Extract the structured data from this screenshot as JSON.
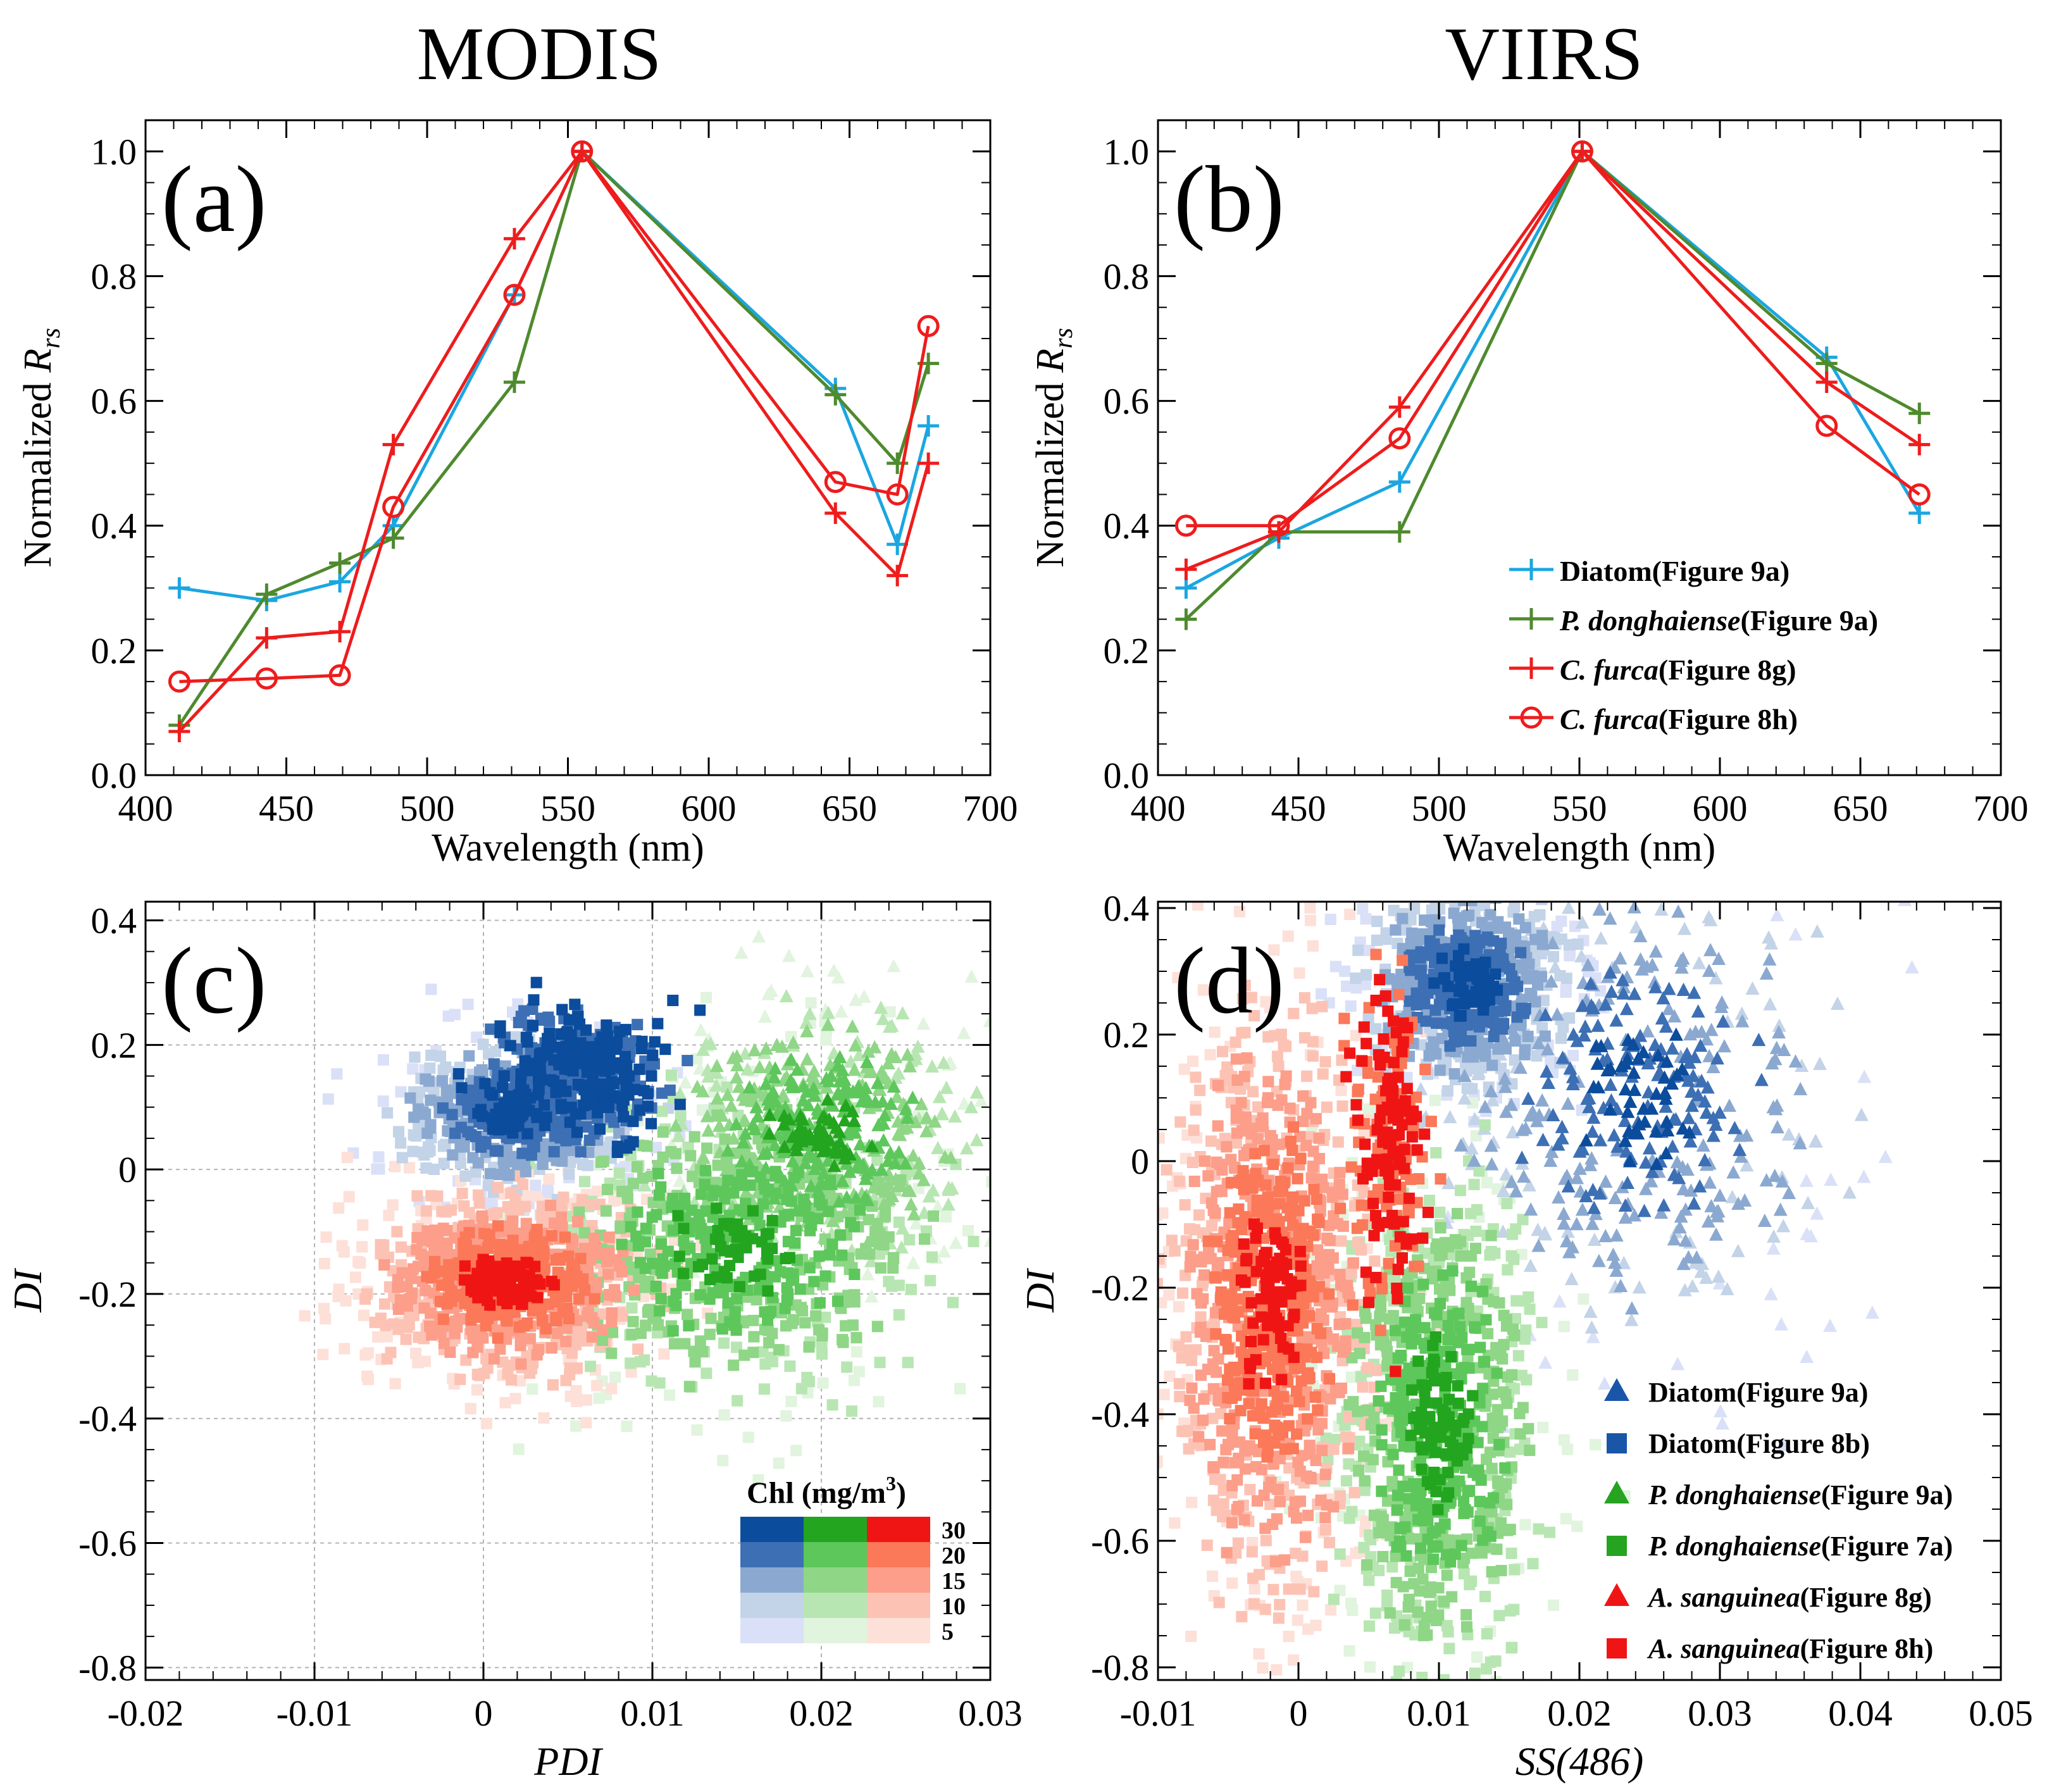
{
  "colors": {
    "diatom_spec": "#1ba6e0",
    "pdong_spec": "#4e8a2e",
    "cfurca_spec": "#ee1c1c",
    "blue": [
      "#dae0f7",
      "#c3d3e8",
      "#8ba9d0",
      "#3d6fb4",
      "#0b4c9c"
    ],
    "green": [
      "#e1f4de",
      "#b8e6b2",
      "#8fd687",
      "#5dc75b",
      "#23a520"
    ],
    "red": [
      "#fde0d8",
      "#fcc3b5",
      "#fc9e8a",
      "#fb7858",
      "#f01515"
    ]
  },
  "chart_data": [
    {
      "id": "a",
      "type": "line",
      "column_title": "MODIS",
      "panel_label": "(a)",
      "xlabel": "Wavelength (nm)",
      "ylabel_main": "Normalized R",
      "ylabel_sub": "rs",
      "xlim": [
        400,
        700
      ],
      "ylim": [
        0,
        1.05
      ],
      "xticks": [
        400,
        450,
        500,
        550,
        600,
        650,
        700
      ],
      "xtick_labels": [
        "400",
        "450",
        "500",
        "550",
        "600",
        "650",
        "700"
      ],
      "yticks": [
        0,
        0.2,
        0.4,
        0.6,
        0.8,
        1.0
      ],
      "ytick_labels": [
        "0.0",
        "0.2",
        "0.4",
        "0.6",
        "0.8",
        "1.0"
      ],
      "x": [
        412,
        443,
        469,
        488,
        531,
        555,
        645,
        667,
        678
      ],
      "series": [
        {
          "name": "Diatom(Figure 9a)",
          "color_key": "diatom_spec",
          "marker": "plus",
          "values": [
            0.3,
            0.28,
            0.31,
            0.4,
            0.77,
            1.0,
            0.62,
            0.37,
            0.56
          ]
        },
        {
          "name": "P. donghaiense(Figure 9a)",
          "color_key": "pdong_spec",
          "marker": "plus",
          "values": [
            0.08,
            0.29,
            0.34,
            0.38,
            0.63,
            1.0,
            0.61,
            0.5,
            0.66
          ]
        },
        {
          "name": "C. furca(Figure 8g)",
          "color_key": "cfurca_spec",
          "marker": "plus",
          "values": [
            0.07,
            0.22,
            0.23,
            0.53,
            0.86,
            1.0,
            0.42,
            0.32,
            0.5
          ]
        },
        {
          "name": "C. furca(Figure 8h)",
          "color_key": "cfurca_spec",
          "marker": "circle",
          "values": [
            0.15,
            0.155,
            0.16,
            0.43,
            0.77,
            1.0,
            0.47,
            0.45,
            0.72
          ]
        }
      ]
    },
    {
      "id": "b",
      "type": "line",
      "column_title": "VIIRS",
      "panel_label": "(b)",
      "xlabel": "Wavelength (nm)",
      "ylabel_main": "Normalized R",
      "ylabel_sub": "rs",
      "xlim": [
        400,
        700
      ],
      "ylim": [
        0,
        1.05
      ],
      "xticks": [
        400,
        450,
        500,
        550,
        600,
        650,
        700
      ],
      "xtick_labels": [
        "400",
        "450",
        "500",
        "550",
        "600",
        "650",
        "700"
      ],
      "yticks": [
        0,
        0.2,
        0.4,
        0.6,
        0.8,
        1.0
      ],
      "ytick_labels": [
        "0.0",
        "0.2",
        "0.4",
        "0.6",
        "0.8",
        "1.0"
      ],
      "x": [
        410,
        443,
        486,
        551,
        638,
        671
      ],
      "series": [
        {
          "name": "Diatom(Figure 9a)",
          "name_italic": "",
          "name_rest": "Diatom(Figure 9a)",
          "color_key": "diatom_spec",
          "marker": "plus",
          "values": [
            0.3,
            0.38,
            0.47,
            1.0,
            0.67,
            0.42
          ]
        },
        {
          "name": "P. donghaiense(Figure 9a)",
          "name_italic": "P. donghaiense",
          "name_rest": "(Figure 9a)",
          "color_key": "pdong_spec",
          "marker": "plus",
          "values": [
            0.25,
            0.39,
            0.39,
            1.0,
            0.66,
            0.58
          ]
        },
        {
          "name": "C. furca(Figure 8g)",
          "name_italic": "C. furca",
          "name_rest": "(Figure 8g)",
          "color_key": "cfurca_spec",
          "marker": "plus",
          "values": [
            0.33,
            0.39,
            0.59,
            1.0,
            0.63,
            0.53
          ]
        },
        {
          "name": "C. furca(Figure 8h)",
          "name_italic": "C. furca",
          "name_rest": "(Figure 8h)",
          "color_key": "cfurca_spec",
          "marker": "circle",
          "values": [
            0.4,
            0.4,
            0.54,
            1.0,
            0.56,
            0.45
          ]
        }
      ],
      "legend_position": "center-right"
    },
    {
      "id": "c",
      "type": "scatter",
      "panel_label": "(c)",
      "xlabel": "PDI",
      "ylabel": "DI",
      "xlim": [
        -0.02,
        0.03
      ],
      "ylim": [
        -0.82,
        0.43
      ],
      "grid": true,
      "xticks": [
        -0.02,
        -0.01,
        0,
        0.01,
        0.02,
        0.03
      ],
      "xtick_labels": [
        "-0.02",
        "-0.01",
        "0",
        "0.01",
        "0.02",
        "0.03"
      ],
      "yticks": [
        -0.8,
        -0.6,
        -0.4,
        -0.2,
        0,
        0.2,
        0.4
      ],
      "ytick_labels": [
        "-0.8",
        "-0.6",
        "-0.4",
        "-0.2",
        "0",
        "0.2",
        "0.4"
      ],
      "colorbar": {
        "title": "Chl (mg/m",
        "title_sup": "3",
        "title_end": ")",
        "levels": [
          "30",
          "20",
          "15",
          "10",
          "5"
        ],
        "position": "bottom-right"
      },
      "clusters": [
        {
          "group": "diatom",
          "shape": "square",
          "palette": "blue",
          "center": [
            0.002,
            0.09
          ],
          "spread": [
            0.0035,
            0.06
          ],
          "count": 520,
          "tilt": 8
        },
        {
          "group": "diatom",
          "shape": "square",
          "palette": "blue",
          "center": [
            0.0055,
            0.16
          ],
          "spread": [
            0.0025,
            0.05
          ],
          "count": 380,
          "tilt": 6,
          "levels": [
            3,
            4
          ]
        },
        {
          "group": "dino",
          "shape": "square",
          "palette": "green",
          "center": [
            0.015,
            -0.12
          ],
          "spread": [
            0.006,
            0.12
          ],
          "count": 720,
          "tilt": 20
        },
        {
          "group": "dino",
          "shape": "triangle",
          "palette": "green",
          "center": [
            0.02,
            0.06
          ],
          "spread": [
            0.0045,
            0.1
          ],
          "count": 560,
          "tilt": 28
        },
        {
          "group": "cfurca",
          "shape": "square",
          "palette": "red",
          "center": [
            0.0015,
            -0.18
          ],
          "spread": [
            0.004,
            0.07
          ],
          "count": 900,
          "tilt": 16
        }
      ]
    },
    {
      "id": "d",
      "type": "scatter",
      "panel_label": "(d)",
      "xlabel": "SS(486)",
      "ylabel": "DI",
      "xlim": [
        -0.01,
        0.05
      ],
      "ylim": [
        -0.82,
        0.41
      ],
      "grid": false,
      "xticks": [
        -0.01,
        0,
        0.01,
        0.02,
        0.03,
        0.04,
        0.05
      ],
      "xtick_labels": [
        "-0.01",
        "0",
        "0.01",
        "0.02",
        "0.03",
        "0.04",
        "0.05"
      ],
      "yticks": [
        -0.8,
        -0.6,
        -0.4,
        -0.2,
        0,
        0.2,
        0.4
      ],
      "ytick_labels": [
        "-0.8",
        "-0.6",
        "-0.4",
        "-0.2",
        "0",
        "0.2",
        "0.4"
      ],
      "legend": [
        {
          "italic": "",
          "rest": "Diatom(Figure 9a)",
          "shape": "triangle",
          "color": "#1a56a8"
        },
        {
          "italic": "",
          "rest": "Diatom(Figure 8b)",
          "shape": "square",
          "color": "#1a56a8"
        },
        {
          "italic": "P. donghaiense",
          "rest": "(Figure 9a)",
          "shape": "triangle",
          "color": "#25a321"
        },
        {
          "italic": "P. donghaiense",
          "rest": "(Figure 7a)",
          "shape": "square",
          "color": "#25a321"
        },
        {
          "italic": "A. sanguinea",
          "rest": "(Figure 8g)",
          "shape": "triangle",
          "color": "#f01515"
        },
        {
          "italic": "A. sanguinea",
          "rest": "(Figure 8h)",
          "shape": "square",
          "color": "#f01515"
        }
      ],
      "clusters": [
        {
          "group": "diatom",
          "shape": "square",
          "palette": "blue",
          "center": [
            0.012,
            0.28
          ],
          "spread": [
            0.0035,
            0.08
          ],
          "count": 650,
          "tilt": 0
        },
        {
          "group": "diatom",
          "shape": "triangle",
          "palette": "blue",
          "center": [
            0.024,
            0.1
          ],
          "spread": [
            0.007,
            0.17
          ],
          "count": 520,
          "tilt": 0
        },
        {
          "group": "dino",
          "shape": "square",
          "palette": "green",
          "center": [
            0.01,
            -0.42
          ],
          "spread": [
            0.0035,
            0.2
          ],
          "count": 900,
          "tilt": 0
        },
        {
          "group": "cfurca",
          "shape": "square",
          "palette": "red",
          "center": [
            -0.002,
            -0.22
          ],
          "spread": [
            0.0035,
            0.22
          ],
          "count": 1100,
          "tilt": 0
        },
        {
          "group": "cfurca",
          "shape": "square",
          "palette": "red",
          "center": [
            0.0065,
            0.02
          ],
          "spread": [
            0.0012,
            0.12
          ],
          "count": 220,
          "tilt": 0,
          "levels": [
            3,
            4
          ]
        }
      ]
    }
  ]
}
